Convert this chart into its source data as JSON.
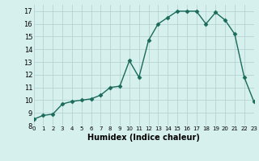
{
  "x": [
    0,
    1,
    2,
    3,
    4,
    5,
    6,
    7,
    8,
    9,
    10,
    11,
    12,
    13,
    14,
    15,
    16,
    17,
    18,
    19,
    20,
    21,
    22,
    23
  ],
  "y": [
    8.5,
    8.8,
    8.9,
    9.7,
    9.9,
    10.0,
    10.1,
    10.4,
    11.0,
    11.1,
    13.1,
    11.8,
    14.7,
    16.0,
    16.5,
    17.0,
    17.0,
    17.0,
    16.0,
    16.9,
    16.3,
    15.2,
    11.8,
    9.9
  ],
  "xlim": [
    0,
    23
  ],
  "ylim": [
    8,
    17.5
  ],
  "yticks": [
    8,
    9,
    10,
    11,
    12,
    13,
    14,
    15,
    16,
    17
  ],
  "xticks": [
    0,
    1,
    2,
    3,
    4,
    5,
    6,
    7,
    8,
    9,
    10,
    11,
    12,
    13,
    14,
    15,
    16,
    17,
    18,
    19,
    20,
    21,
    22,
    23
  ],
  "xlabel": "Humidex (Indice chaleur)",
  "line_color": "#1a6b5a",
  "marker": "D",
  "markersize": 2.5,
  "bg_color": "#d6f0ee",
  "grid_color": "#b0cece",
  "linewidth": 1.0,
  "xlabel_fontsize": 7,
  "tick_fontsize": 5,
  "ytick_fontsize": 6
}
